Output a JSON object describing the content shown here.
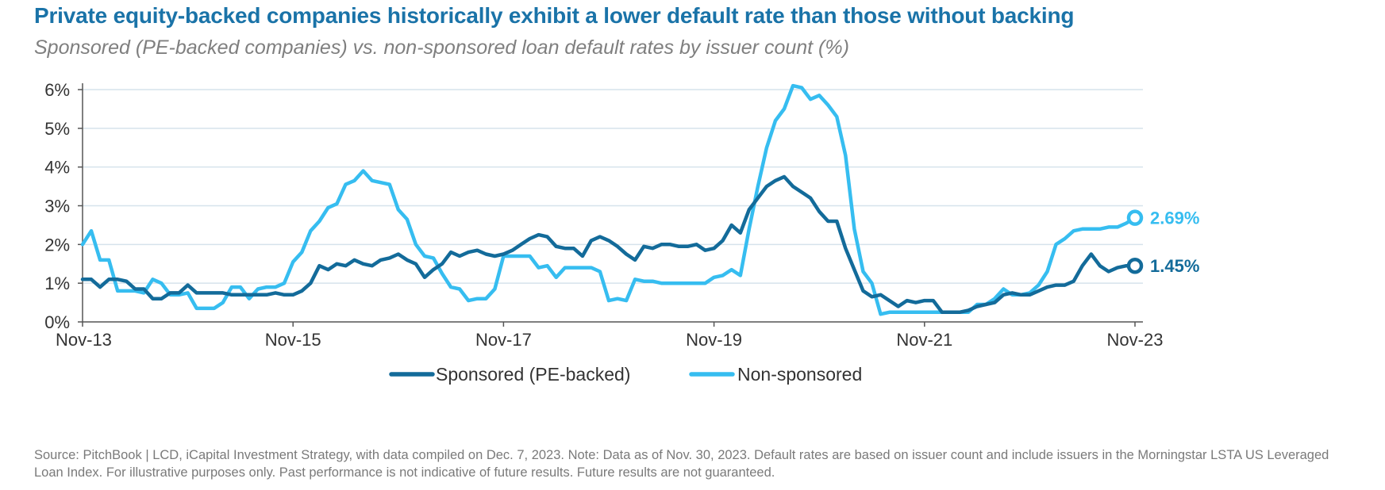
{
  "chart_data": {
    "type": "line",
    "title": "Private equity-backed companies historically exhibit a lower default rate than those without backing",
    "subtitle": "Sponsored (PE-backed companies) vs. non-sponsored loan default rates by issuer count (%)",
    "x_range_months": [
      0,
      120
    ],
    "x_ticks": [
      {
        "label": "Nov-13",
        "month": 0
      },
      {
        "label": "Nov-15",
        "month": 24
      },
      {
        "label": "Nov-17",
        "month": 48
      },
      {
        "label": "Nov-19",
        "month": 72
      },
      {
        "label": "Nov-21",
        "month": 96
      },
      {
        "label": "Nov-23",
        "month": 120
      }
    ],
    "ylim": [
      0,
      6
    ],
    "y_ticks": [
      {
        "label": "0%",
        "value": 0
      },
      {
        "label": "1%",
        "value": 1
      },
      {
        "label": "2%",
        "value": 2
      },
      {
        "label": "3%",
        "value": 3
      },
      {
        "label": "4%",
        "value": 4
      },
      {
        "label": "5%",
        "value": 5
      },
      {
        "label": "6%",
        "value": 6
      }
    ],
    "series": [
      {
        "name": "Sponsored (PE-backed)",
        "color": "#136b9a",
        "end_label": "1.45%",
        "points": [
          [
            0,
            1.1
          ],
          [
            1,
            1.1
          ],
          [
            2,
            0.9
          ],
          [
            3,
            1.1
          ],
          [
            4,
            1.1
          ],
          [
            5,
            1.05
          ],
          [
            6,
            0.85
          ],
          [
            7,
            0.85
          ],
          [
            8,
            0.6
          ],
          [
            9,
            0.6
          ],
          [
            10,
            0.75
          ],
          [
            11,
            0.75
          ],
          [
            12,
            0.95
          ],
          [
            13,
            0.75
          ],
          [
            14,
            0.75
          ],
          [
            15,
            0.75
          ],
          [
            16,
            0.75
          ],
          [
            17,
            0.7
          ],
          [
            18,
            0.7
          ],
          [
            19,
            0.7
          ],
          [
            20,
            0.7
          ],
          [
            21,
            0.7
          ],
          [
            22,
            0.75
          ],
          [
            23,
            0.7
          ],
          [
            24,
            0.7
          ],
          [
            25,
            0.8
          ],
          [
            26,
            1.0
          ],
          [
            27,
            1.45
          ],
          [
            28,
            1.35
          ],
          [
            29,
            1.5
          ],
          [
            30,
            1.45
          ],
          [
            31,
            1.6
          ],
          [
            32,
            1.5
          ],
          [
            33,
            1.45
          ],
          [
            34,
            1.6
          ],
          [
            35,
            1.65
          ],
          [
            36,
            1.75
          ],
          [
            37,
            1.6
          ],
          [
            38,
            1.5
          ],
          [
            39,
            1.15
          ],
          [
            40,
            1.35
          ],
          [
            41,
            1.5
          ],
          [
            42,
            1.8
          ],
          [
            43,
            1.7
          ],
          [
            44,
            1.8
          ],
          [
            45,
            1.85
          ],
          [
            46,
            1.75
          ],
          [
            47,
            1.7
          ],
          [
            48,
            1.75
          ],
          [
            49,
            1.85
          ],
          [
            50,
            2.0
          ],
          [
            51,
            2.15
          ],
          [
            52,
            2.25
          ],
          [
            53,
            2.2
          ],
          [
            54,
            1.95
          ],
          [
            55,
            1.9
          ],
          [
            56,
            1.9
          ],
          [
            57,
            1.7
          ],
          [
            58,
            2.1
          ],
          [
            59,
            2.2
          ],
          [
            60,
            2.1
          ],
          [
            61,
            1.95
          ],
          [
            62,
            1.75
          ],
          [
            63,
            1.6
          ],
          [
            64,
            1.95
          ],
          [
            65,
            1.9
          ],
          [
            66,
            2.0
          ],
          [
            67,
            2.0
          ],
          [
            68,
            1.95
          ],
          [
            69,
            1.95
          ],
          [
            70,
            2.0
          ],
          [
            71,
            1.85
          ],
          [
            72,
            1.9
          ],
          [
            73,
            2.1
          ],
          [
            74,
            2.5
          ],
          [
            75,
            2.3
          ],
          [
            76,
            2.9
          ],
          [
            77,
            3.2
          ],
          [
            78,
            3.5
          ],
          [
            79,
            3.65
          ],
          [
            80,
            3.75
          ],
          [
            81,
            3.5
          ],
          [
            82,
            3.35
          ],
          [
            83,
            3.2
          ],
          [
            84,
            2.85
          ],
          [
            85,
            2.6
          ],
          [
            86,
            2.6
          ],
          [
            87,
            1.9
          ],
          [
            88,
            1.35
          ],
          [
            89,
            0.8
          ],
          [
            90,
            0.65
          ],
          [
            91,
            0.7
          ],
          [
            92,
            0.55
          ],
          [
            93,
            0.4
          ],
          [
            94,
            0.55
          ],
          [
            95,
            0.5
          ],
          [
            96,
            0.55
          ],
          [
            97,
            0.55
          ],
          [
            98,
            0.25
          ],
          [
            99,
            0.25
          ],
          [
            100,
            0.25
          ],
          [
            101,
            0.3
          ],
          [
            102,
            0.4
          ],
          [
            103,
            0.45
          ],
          [
            104,
            0.5
          ],
          [
            105,
            0.7
          ],
          [
            106,
            0.75
          ],
          [
            107,
            0.7
          ],
          [
            108,
            0.7
          ],
          [
            109,
            0.8
          ],
          [
            110,
            0.9
          ],
          [
            111,
            0.95
          ],
          [
            112,
            0.95
          ],
          [
            113,
            1.05
          ],
          [
            114,
            1.45
          ],
          [
            115,
            1.75
          ],
          [
            116,
            1.45
          ],
          [
            117,
            1.3
          ],
          [
            118,
            1.4
          ],
          [
            119,
            1.45
          ],
          [
            120,
            1.45
          ]
        ]
      },
      {
        "name": "Non-sponsored",
        "color": "#36bdf0",
        "end_label": "2.69%",
        "points": [
          [
            0,
            2.0
          ],
          [
            1,
            2.35
          ],
          [
            2,
            1.6
          ],
          [
            3,
            1.6
          ],
          [
            4,
            0.8
          ],
          [
            5,
            0.8
          ],
          [
            6,
            0.8
          ],
          [
            7,
            0.75
          ],
          [
            8,
            1.1
          ],
          [
            9,
            1.0
          ],
          [
            10,
            0.7
          ],
          [
            11,
            0.7
          ],
          [
            12,
            0.75
          ],
          [
            13,
            0.35
          ],
          [
            14,
            0.35
          ],
          [
            15,
            0.35
          ],
          [
            16,
            0.5
          ],
          [
            17,
            0.9
          ],
          [
            18,
            0.9
          ],
          [
            19,
            0.6
          ],
          [
            20,
            0.85
          ],
          [
            21,
            0.9
          ],
          [
            22,
            0.9
          ],
          [
            23,
            1.0
          ],
          [
            24,
            1.55
          ],
          [
            25,
            1.8
          ],
          [
            26,
            2.35
          ],
          [
            27,
            2.6
          ],
          [
            28,
            2.95
          ],
          [
            29,
            3.05
          ],
          [
            30,
            3.55
          ],
          [
            31,
            3.65
          ],
          [
            32,
            3.9
          ],
          [
            33,
            3.65
          ],
          [
            34,
            3.6
          ],
          [
            35,
            3.55
          ],
          [
            36,
            2.9
          ],
          [
            37,
            2.65
          ],
          [
            38,
            2.0
          ],
          [
            39,
            1.7
          ],
          [
            40,
            1.65
          ],
          [
            41,
            1.25
          ],
          [
            42,
            0.9
          ],
          [
            43,
            0.85
          ],
          [
            44,
            0.55
          ],
          [
            45,
            0.6
          ],
          [
            46,
            0.6
          ],
          [
            47,
            0.85
          ],
          [
            48,
            1.7
          ],
          [
            49,
            1.7
          ],
          [
            50,
            1.7
          ],
          [
            51,
            1.7
          ],
          [
            52,
            1.4
          ],
          [
            53,
            1.45
          ],
          [
            54,
            1.15
          ],
          [
            55,
            1.4
          ],
          [
            56,
            1.4
          ],
          [
            57,
            1.4
          ],
          [
            58,
            1.4
          ],
          [
            59,
            1.3
          ],
          [
            60,
            0.55
          ],
          [
            61,
            0.6
          ],
          [
            62,
            0.55
          ],
          [
            63,
            1.1
          ],
          [
            64,
            1.05
          ],
          [
            65,
            1.05
          ],
          [
            66,
            1.0
          ],
          [
            67,
            1.0
          ],
          [
            68,
            1.0
          ],
          [
            69,
            1.0
          ],
          [
            70,
            1.0
          ],
          [
            71,
            1.0
          ],
          [
            72,
            1.15
          ],
          [
            73,
            1.2
          ],
          [
            74,
            1.35
          ],
          [
            75,
            1.2
          ],
          [
            76,
            2.4
          ],
          [
            77,
            3.5
          ],
          [
            78,
            4.5
          ],
          [
            79,
            5.2
          ],
          [
            80,
            5.5
          ],
          [
            81,
            6.1
          ],
          [
            82,
            6.05
          ],
          [
            83,
            5.75
          ],
          [
            84,
            5.85
          ],
          [
            85,
            5.6
          ],
          [
            86,
            5.3
          ],
          [
            87,
            4.3
          ],
          [
            88,
            2.4
          ],
          [
            89,
            1.3
          ],
          [
            90,
            1.0
          ],
          [
            91,
            0.2
          ],
          [
            92,
            0.25
          ],
          [
            93,
            0.25
          ],
          [
            94,
            0.25
          ],
          [
            95,
            0.25
          ],
          [
            96,
            0.25
          ],
          [
            97,
            0.25
          ],
          [
            98,
            0.25
          ],
          [
            99,
            0.25
          ],
          [
            100,
            0.25
          ],
          [
            101,
            0.25
          ],
          [
            102,
            0.45
          ],
          [
            103,
            0.45
          ],
          [
            104,
            0.6
          ],
          [
            105,
            0.85
          ],
          [
            106,
            0.7
          ],
          [
            107,
            0.7
          ],
          [
            108,
            0.75
          ],
          [
            109,
            0.95
          ],
          [
            110,
            1.3
          ],
          [
            111,
            2.0
          ],
          [
            112,
            2.15
          ],
          [
            113,
            2.35
          ],
          [
            114,
            2.4
          ],
          [
            115,
            2.4
          ],
          [
            116,
            2.4
          ],
          [
            117,
            2.45
          ],
          [
            118,
            2.45
          ],
          [
            119,
            2.55
          ],
          [
            120,
            2.69
          ]
        ]
      }
    ],
    "legend_position": "bottom-center"
  },
  "footer": {
    "source": "Source: PitchBook | LCD, iCapital Investment Strategy, with data compiled on Dec. 7, 2023. Note: Data as of Nov. 30, 2023. Default rates are based on issuer count and include issuers in the Morningstar LSTA US Leveraged Loan Index. For illustrative purposes only. Past performance is not indicative of future results. Future results are not guaranteed."
  }
}
